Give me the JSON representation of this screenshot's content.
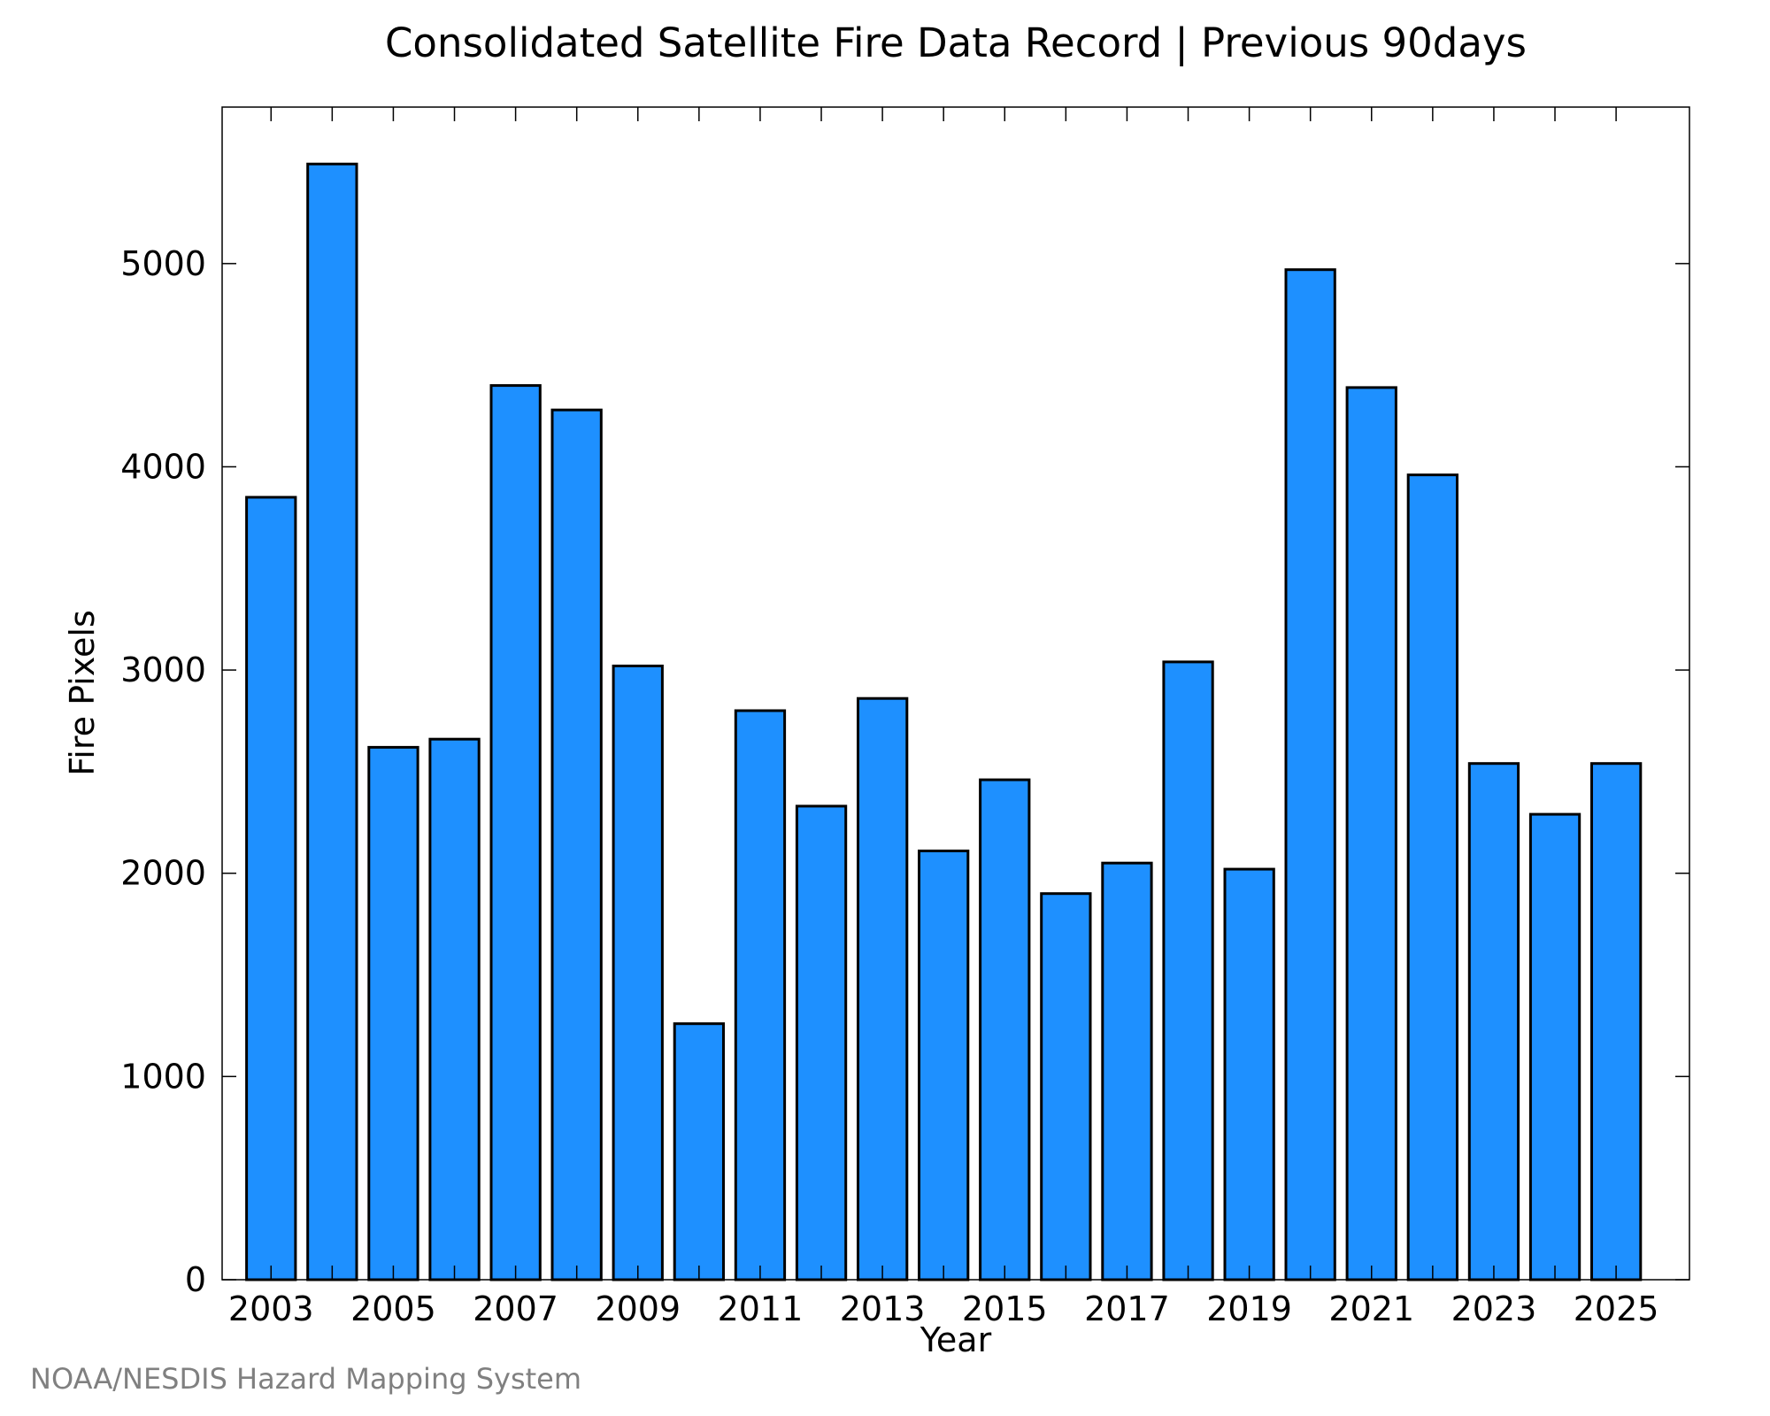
{
  "chart_data": {
    "type": "bar",
    "title": "Consolidated Satellite Fire Data Record | Previous 90days",
    "xlabel": "Year",
    "ylabel": "Fire Pixels",
    "categories": [
      "2003",
      "2004",
      "2005",
      "2006",
      "2007",
      "2008",
      "2009",
      "2010",
      "2011",
      "2012",
      "2013",
      "2014",
      "2015",
      "2016",
      "2017",
      "2018",
      "2019",
      "2020",
      "2021",
      "2022",
      "2023",
      "2024",
      "2025"
    ],
    "values": [
      3850,
      5490,
      2620,
      2660,
      4400,
      4280,
      3020,
      1260,
      2800,
      2330,
      2860,
      2110,
      2460,
      1900,
      2050,
      3040,
      2020,
      4970,
      4390,
      3960,
      2540,
      2290,
      2540
    ],
    "x_tick_labels": [
      "2003",
      "2005",
      "2007",
      "2009",
      "2011",
      "2013",
      "2015",
      "2017",
      "2019",
      "2021",
      "2023",
      "2025"
    ],
    "y_ticks": [
      0,
      1000,
      2000,
      3000,
      4000,
      5000
    ],
    "y_tick_labels": [
      "0",
      "1000",
      "2000",
      "3000",
      "4000",
      "5000"
    ],
    "ylim": [
      0,
      5770
    ],
    "xlim": [
      2002.2,
      2026.2
    ],
    "grid": false,
    "legend": "none",
    "bar_color": "#1e90ff",
    "bar_edge_color": "#000000"
  },
  "credit": "NOAA/NESDIS Hazard Mapping System"
}
